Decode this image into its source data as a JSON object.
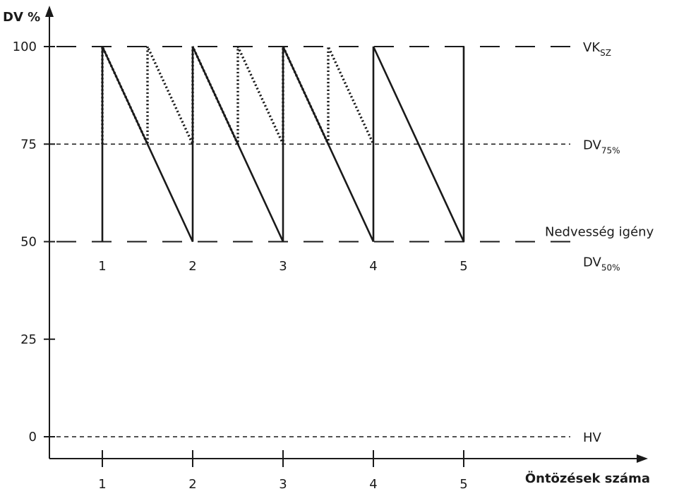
{
  "chart_data": {
    "type": "line",
    "ylabel": "DV %",
    "xlabel": "Öntözések száma",
    "yticks": [
      0,
      25,
      50,
      75,
      100
    ],
    "xticks": [
      "1",
      "2",
      "3",
      "4",
      "5"
    ],
    "upper_row_labels": [
      "1",
      "2",
      "3",
      "4",
      "5"
    ],
    "ylim": [
      0,
      100
    ],
    "xlim": [
      0.4,
      6.2
    ],
    "reference_lines": [
      {
        "y": 100,
        "label": "VK",
        "sub": "SZ",
        "style": "long-dash"
      },
      {
        "y": 75,
        "label": "DV",
        "sub": "75%",
        "style": "short-dash"
      },
      {
        "y": 50,
        "label": "DV",
        "sub": "50%",
        "caption": "Nedvesség igény",
        "style": "long-dash"
      },
      {
        "y": 0,
        "label": "HV",
        "sub": "",
        "style": "short-dash"
      }
    ],
    "series": [
      {
        "style": "solid",
        "points": [
          [
            1,
            50
          ],
          [
            1,
            100
          ],
          [
            2,
            50
          ],
          [
            2,
            100
          ],
          [
            3,
            50
          ],
          [
            3,
            100
          ],
          [
            4,
            50
          ],
          [
            4,
            100
          ],
          [
            5,
            50
          ],
          [
            5,
            100
          ]
        ]
      },
      {
        "style": "dotted",
        "points": [
          [
            1,
            75
          ],
          [
            1,
            100
          ],
          [
            1.5,
            75
          ],
          [
            1.5,
            100
          ],
          [
            2,
            75
          ],
          [
            2,
            100
          ],
          [
            2.5,
            75
          ],
          [
            2.5,
            100
          ],
          [
            3,
            75
          ],
          [
            3,
            100
          ],
          [
            3.5,
            75
          ],
          [
            3.5,
            100
          ],
          [
            4,
            75
          ]
        ]
      }
    ]
  }
}
